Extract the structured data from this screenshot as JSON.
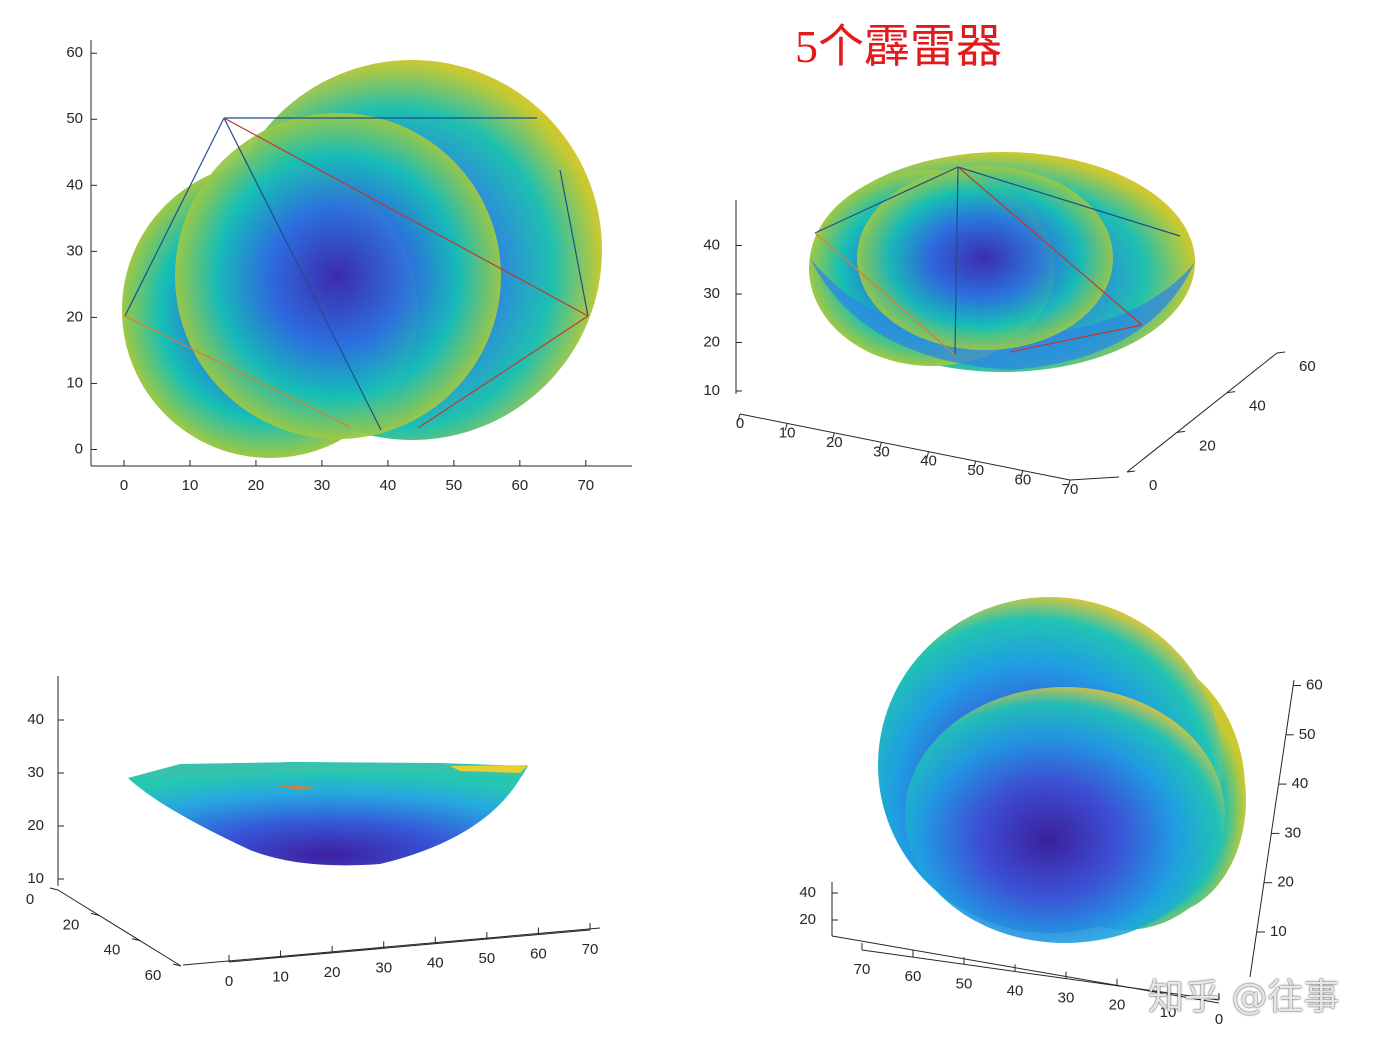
{
  "title": "5个霹雷器",
  "watermark": "知乎 @往事",
  "colors": {
    "title": "#e31a1c",
    "surface_low": "#3e26a8",
    "surface_mid": "#16bfb6",
    "surface_high": "#f9d31c",
    "tower_edge": "#1f4e8c",
    "lightning_line": "#c0392b",
    "orange_line": "#e07b2a"
  },
  "chart_data": [
    {
      "type": "surface",
      "view": "top (x-y)",
      "lightning_rods": 5,
      "x_ticks": [
        "0",
        "10",
        "20",
        "30",
        "40",
        "50",
        "60",
        "70"
      ],
      "y_ticks": [
        "0",
        "10",
        "20",
        "30",
        "40",
        "50",
        "60"
      ],
      "xlim": [
        -5,
        77
      ],
      "ylim": [
        -2.5,
        62
      ]
    },
    {
      "type": "surface",
      "view": "3D perspective",
      "x_ticks": [
        "0",
        "10",
        "20",
        "30",
        "40",
        "50",
        "60",
        "70"
      ],
      "y_ticks": [
        "0",
        "20",
        "40",
        "60"
      ],
      "z_ticks": [
        "10",
        "20",
        "30",
        "40"
      ]
    },
    {
      "type": "surface",
      "view": "3D side (low elevation)",
      "x_ticks": [
        "0",
        "10",
        "20",
        "30",
        "40",
        "50",
        "60",
        "70"
      ],
      "y_ticks": [
        "0",
        "20",
        "40",
        "60"
      ],
      "z_ticks": [
        "10",
        "20",
        "30",
        "40"
      ]
    },
    {
      "type": "surface",
      "view": "3D from below",
      "x_ticks": [
        "70",
        "60",
        "50",
        "40",
        "30",
        "20",
        "10",
        "0"
      ],
      "y_ticks": [
        "10",
        "20",
        "30",
        "40",
        "50",
        "60"
      ],
      "z_ticks": [
        "20",
        "40"
      ]
    }
  ]
}
